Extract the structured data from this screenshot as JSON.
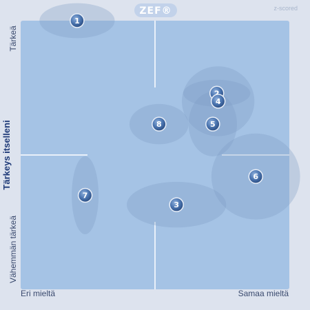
{
  "app": {
    "logo": "ZEF®",
    "scale_label": "z-scored"
  },
  "chart_data": {
    "type": "scatter",
    "xlabel_left": "Eri mieltä",
    "xlabel_right": "Samaa mieltä",
    "ylabel": "Tärkeys itselleni",
    "ylabel_top": "Tärkeä",
    "ylabel_bottom": "Vähemmän tärkeä",
    "xlim": [
      -1,
      1
    ],
    "ylim": [
      -1,
      1
    ],
    "points": [
      {
        "label": "1",
        "x": -0.58,
        "y": 1.0,
        "sx": 0.28,
        "sy": 0.13
      },
      {
        "label": "2",
        "x": 0.46,
        "y": 0.46,
        "sx": 0.25,
        "sy": 0.1
      },
      {
        "label": "3",
        "x": 0.16,
        "y": -0.37,
        "sx": 0.37,
        "sy": 0.17
      },
      {
        "label": "4",
        "x": 0.47,
        "y": 0.4,
        "sx": 0.27,
        "sy": 0.26
      },
      {
        "label": "5",
        "x": 0.43,
        "y": 0.23,
        "sx": 0.18,
        "sy": 0.24
      },
      {
        "label": "6",
        "x": 0.75,
        "y": -0.16,
        "sx": 0.33,
        "sy": 0.32
      },
      {
        "label": "7",
        "x": -0.52,
        "y": -0.3,
        "sx": 0.1,
        "sy": 0.29
      },
      {
        "label": "8",
        "x": 0.03,
        "y": 0.23,
        "sx": 0.22,
        "sy": 0.15
      }
    ]
  },
  "colors": {
    "plot_bg": "#a5c3e5",
    "ellipse_fill": "#7d9ac4",
    "marker_fill": "#3f6aa6",
    "marker_stroke": "#e8eef7",
    "divider": "#e9f0f9"
  }
}
